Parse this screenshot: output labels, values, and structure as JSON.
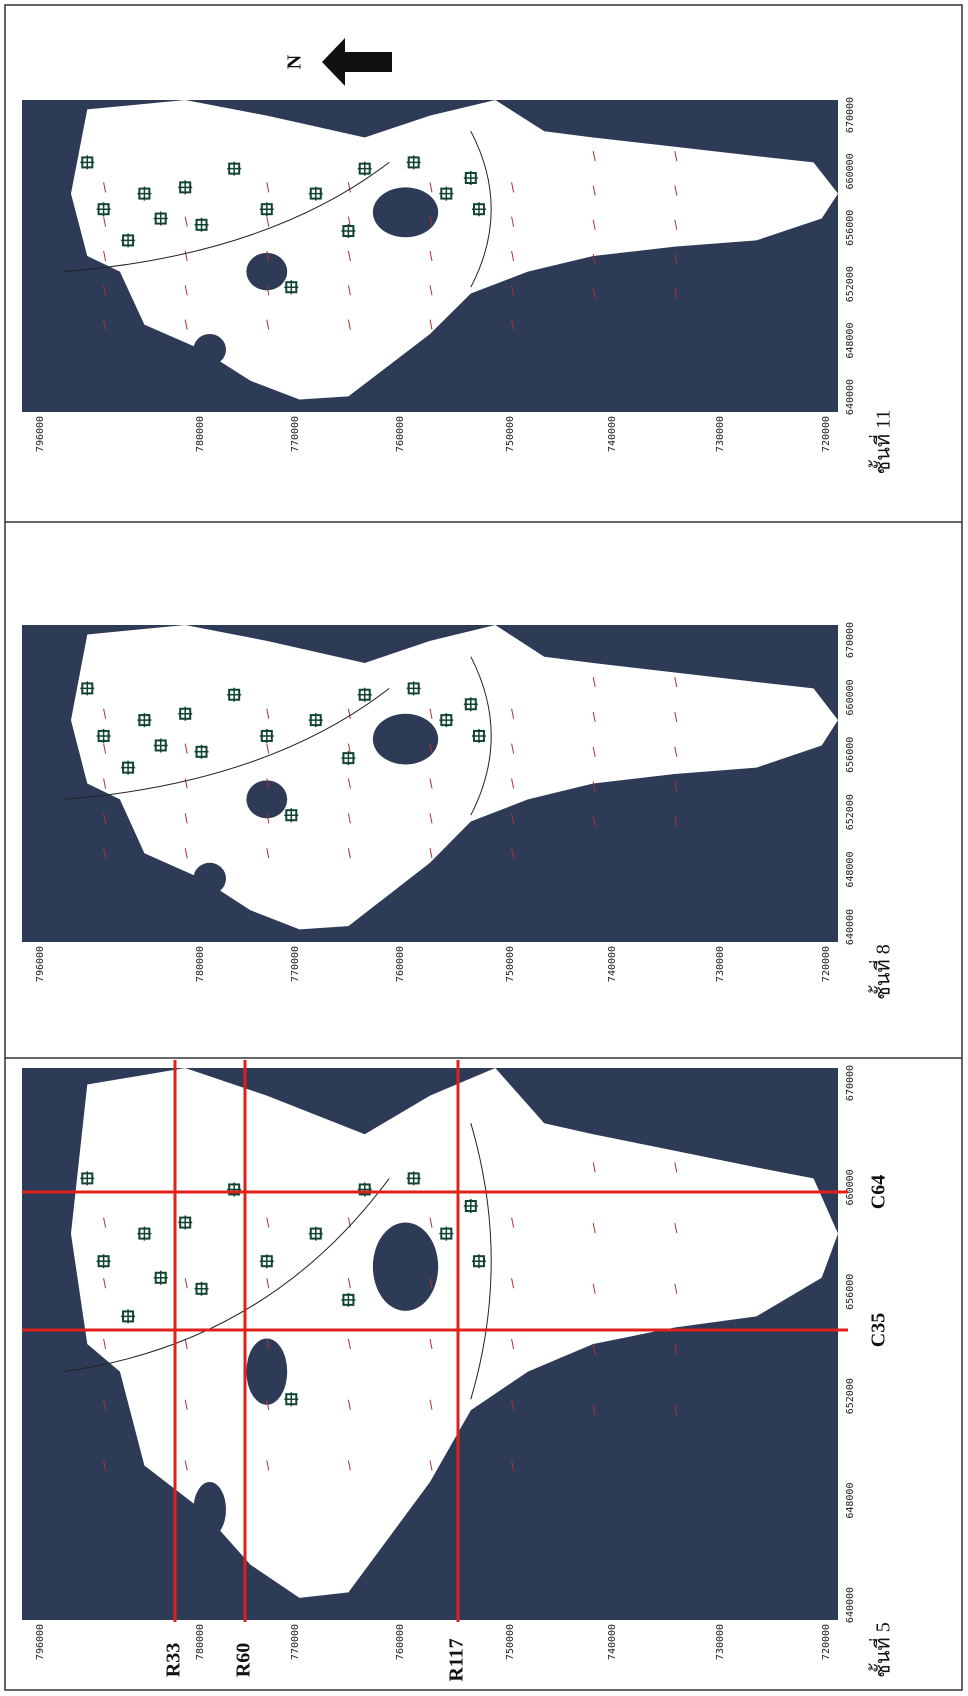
{
  "north": "N",
  "panels": [
    {
      "label": "ชั้นที่ 5",
      "section_rows": [
        "R33",
        "R60",
        "R117"
      ],
      "section_cols": [
        "C35",
        "C64"
      ]
    },
    {
      "label": "ชั้นที่ 8"
    },
    {
      "label": "ชั้นที่ 11"
    }
  ],
  "axes": {
    "northing": [
      "796000",
      "780000",
      "770000",
      "760000",
      "750000",
      "740000",
      "730000",
      "720000"
    ],
    "easting": [
      "640000",
      "648000",
      "652000",
      "656000",
      "660000",
      "670000"
    ]
  }
}
